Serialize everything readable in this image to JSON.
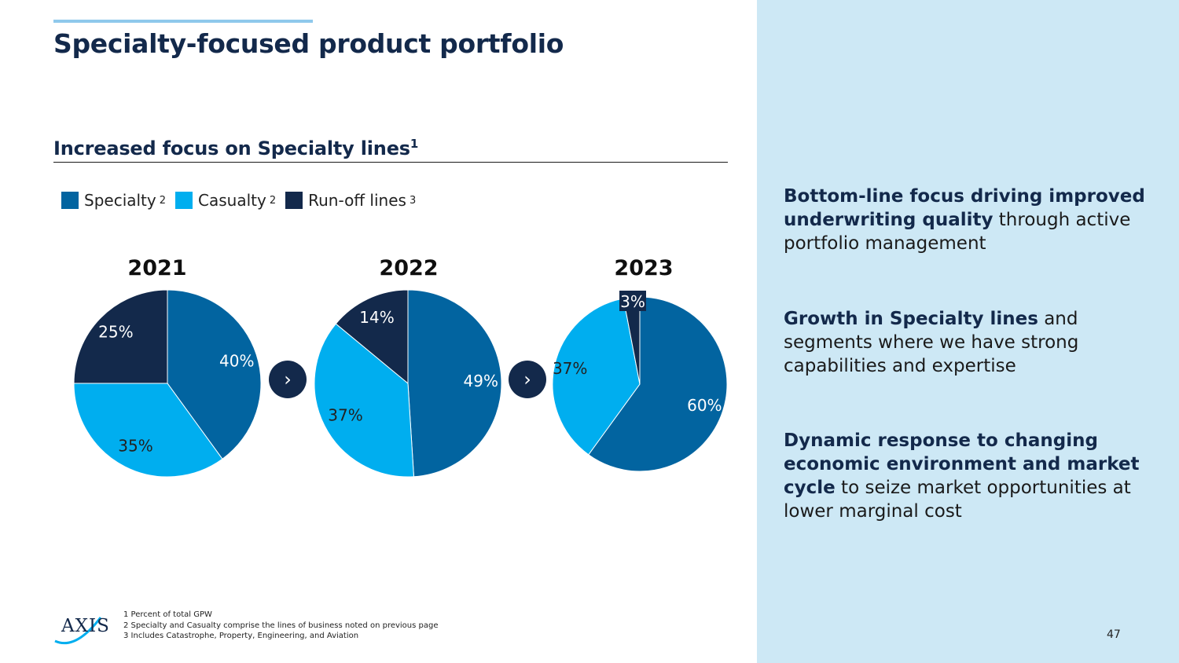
{
  "title": "Specialty-focused product portfolio",
  "subtitle": "Increased focus on Specialty lines",
  "subtitle_sup": "1",
  "legend": [
    {
      "label": "Specialty",
      "sup": "2",
      "color": "#0264a0"
    },
    {
      "label": "Casualty",
      "sup": "2",
      "color": "#00aeef"
    },
    {
      "label": "Run-off lines",
      "sup": "3",
      "color": "#13294b"
    }
  ],
  "chart_data": [
    {
      "type": "pie",
      "title": "2021",
      "categories": [
        "Specialty",
        "Casualty",
        "Run-off lines"
      ],
      "values": [
        40,
        35,
        25
      ],
      "labels": [
        "40%",
        "35%",
        "25%"
      ]
    },
    {
      "type": "pie",
      "title": "2022",
      "categories": [
        "Specialty",
        "Casualty",
        "Run-off lines"
      ],
      "values": [
        49,
        37,
        14
      ],
      "labels": [
        "49%",
        "37%",
        "14%"
      ]
    },
    {
      "type": "pie",
      "title": "2023",
      "categories": [
        "Specialty",
        "Casualty",
        "Run-off lines"
      ],
      "values": [
        60,
        37,
        3
      ],
      "labels": [
        "60%",
        "37%",
        "3%"
      ]
    }
  ],
  "colors": {
    "specialty": "#0264a0",
    "casualty": "#00aeef",
    "runoff": "#13294b",
    "accent": "#8fc9ec",
    "panel": "#cde8f5"
  },
  "points": [
    {
      "bold": "Bottom-line focus driving improved underwriting quality",
      "rest": " through active portfolio management"
    },
    {
      "bold": "Growth in Specialty lines",
      "rest": " and segments where we have strong capabilities and expertise"
    },
    {
      "bold": "Dynamic response to changing economic environment and market cycle",
      "rest": " to seize market opportunities at lower marginal cost"
    }
  ],
  "footnotes": [
    "1   Percent of total GPW",
    "2   Specialty and Casualty comprise the lines of business noted on previous page",
    "3   Includes Catastrophe, Property, Engineering, and Aviation"
  ],
  "logo_text": "AXIS",
  "arrow_glyph": "›",
  "page_number": "47"
}
